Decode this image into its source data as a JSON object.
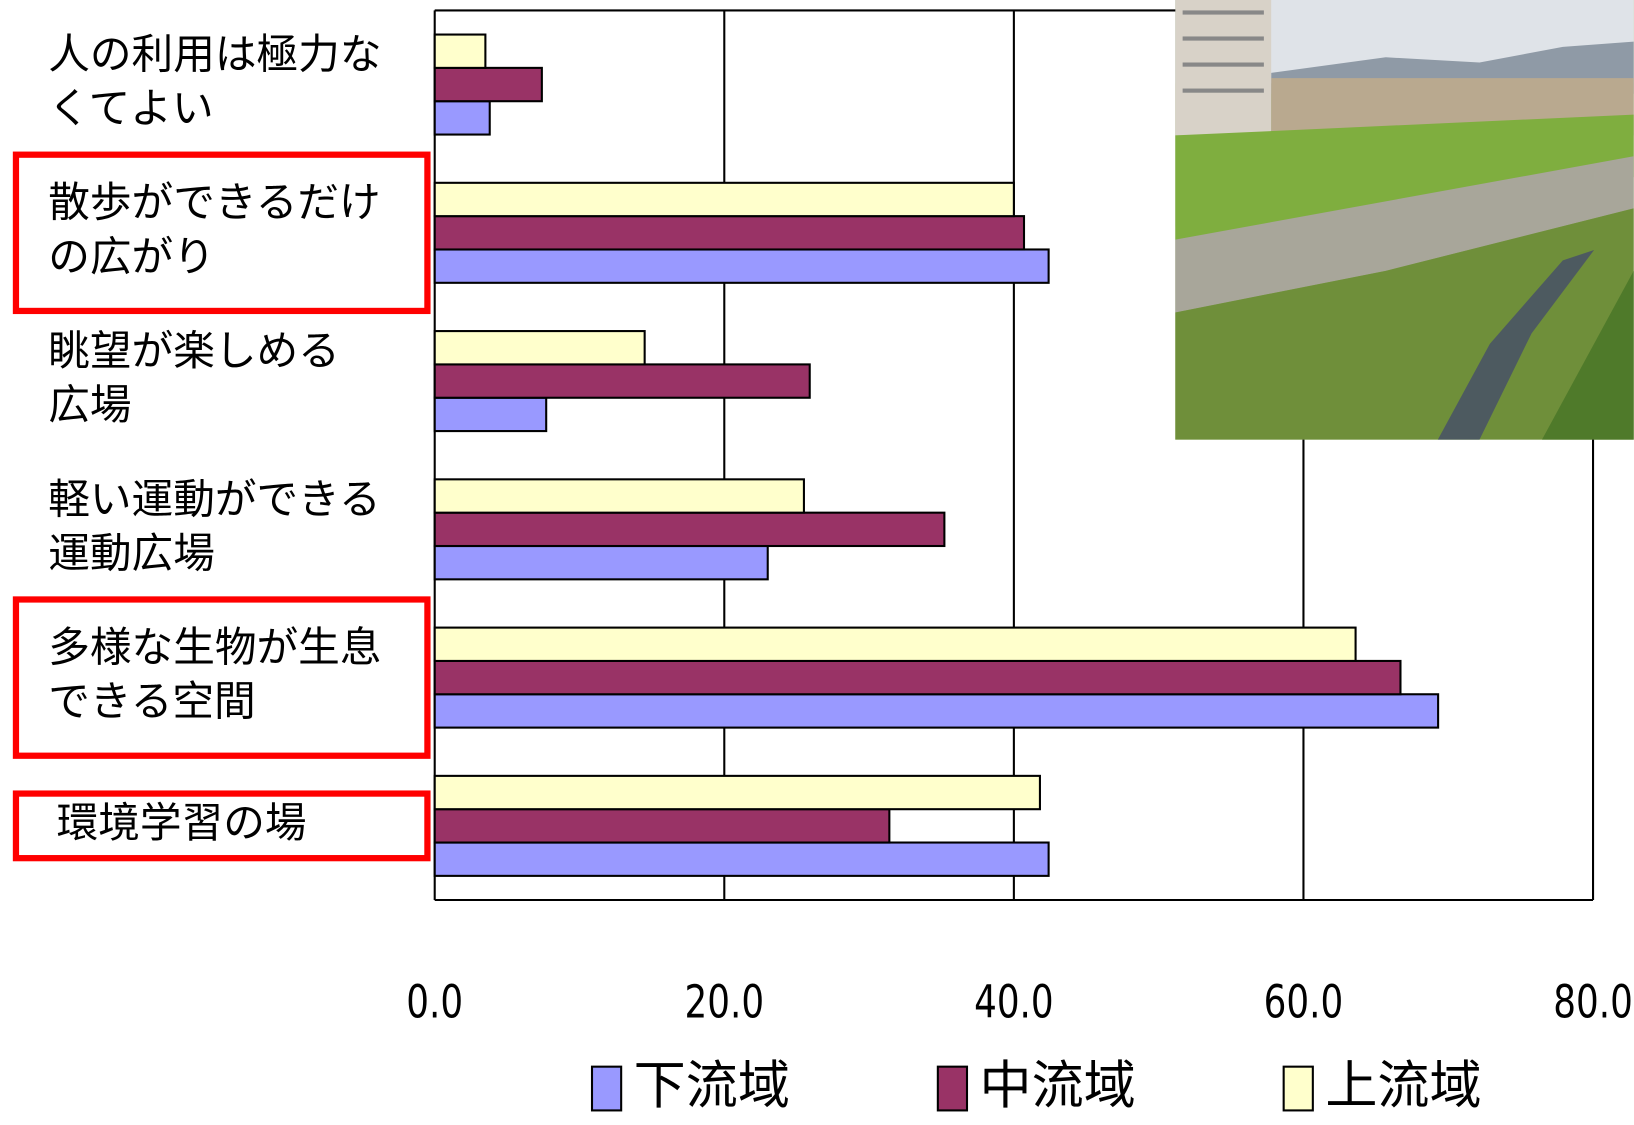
{
  "chart_data": {
    "type": "bar",
    "orientation": "horizontal",
    "categories": [
      "人の利用は極力なくてよい",
      "散歩ができるだけの広がり",
      "眺望が楽しめる広場",
      "軽い運動ができる運動広場",
      "多様な生物が生息できる空間",
      "環境学習の場"
    ],
    "series": [
      {
        "name": "下流域",
        "color": "#9999ff",
        "values": [
          3.8,
          42.4,
          7.7,
          23.0,
          69.3,
          42.4
        ]
      },
      {
        "name": "中流域",
        "color": "#993366",
        "values": [
          7.4,
          40.7,
          25.9,
          35.2,
          66.7,
          31.4
        ]
      },
      {
        "name": "上流域",
        "color": "#ffffcc",
        "values": [
          3.5,
          40.0,
          14.5,
          25.5,
          63.6,
          41.8
        ]
      }
    ],
    "xlim": [
      0,
      80
    ],
    "xticks": [
      {
        "value": 0,
        "label": "0.0"
      },
      {
        "value": 20,
        "label": "20.0"
      },
      {
        "value": 40,
        "label": "40.0"
      },
      {
        "value": 60,
        "label": "60.0"
      },
      {
        "value": 80,
        "label": "80.0"
      }
    ],
    "grid": true,
    "legend": "bottom"
  }
}
